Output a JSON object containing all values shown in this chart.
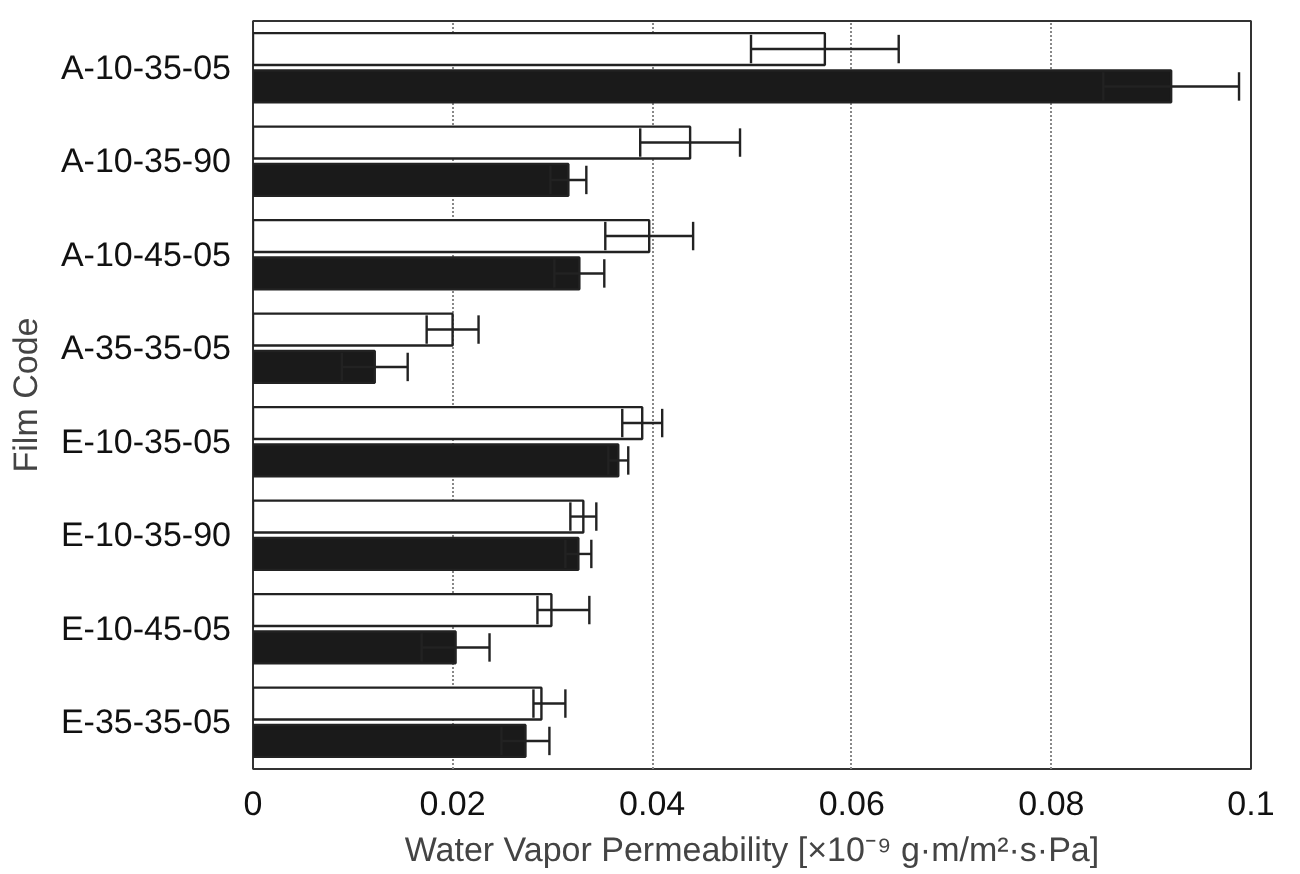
{
  "chart_data": {
    "type": "bar",
    "orientation": "horizontal",
    "categories": [
      "A-10-35-05",
      "A-10-35-90",
      "A-10-45-05",
      "A-35-35-05",
      "E-10-35-05",
      "E-10-35-90",
      "E-10-45-05",
      "E-35-35-05"
    ],
    "series": [
      {
        "color": "#ffffff",
        "values": [
          0.0573,
          0.0438,
          0.0397,
          0.02,
          0.039,
          0.0331,
          0.0299,
          0.0289
        ],
        "errors": [
          0.0074,
          0.005,
          0.0044,
          0.0026,
          0.002,
          0.0013,
          [
            0.0285,
            0.0337
          ],
          [
            0.0281,
            0.0313
          ]
        ]
      },
      {
        "color": "#1a1a1a",
        "values": [
          0.092,
          0.0316,
          0.0327,
          0.0122,
          0.0366,
          0.0326,
          0.0203,
          0.0273
        ],
        "errors": [
          0.0068,
          0.0018,
          0.0025,
          0.0033,
          0.001,
          0.0013,
          0.0034,
          0.0024
        ]
      }
    ],
    "xlim": [
      0,
      0.1
    ],
    "xticks": [
      0,
      0.02,
      0.04,
      0.06,
      0.08,
      0.1
    ],
    "xlabel": "Water Vapor Permeability [×10⁻⁹ g·m/m²·s·Pa]",
    "ylabel": "Film Code",
    "grid": "x"
  }
}
